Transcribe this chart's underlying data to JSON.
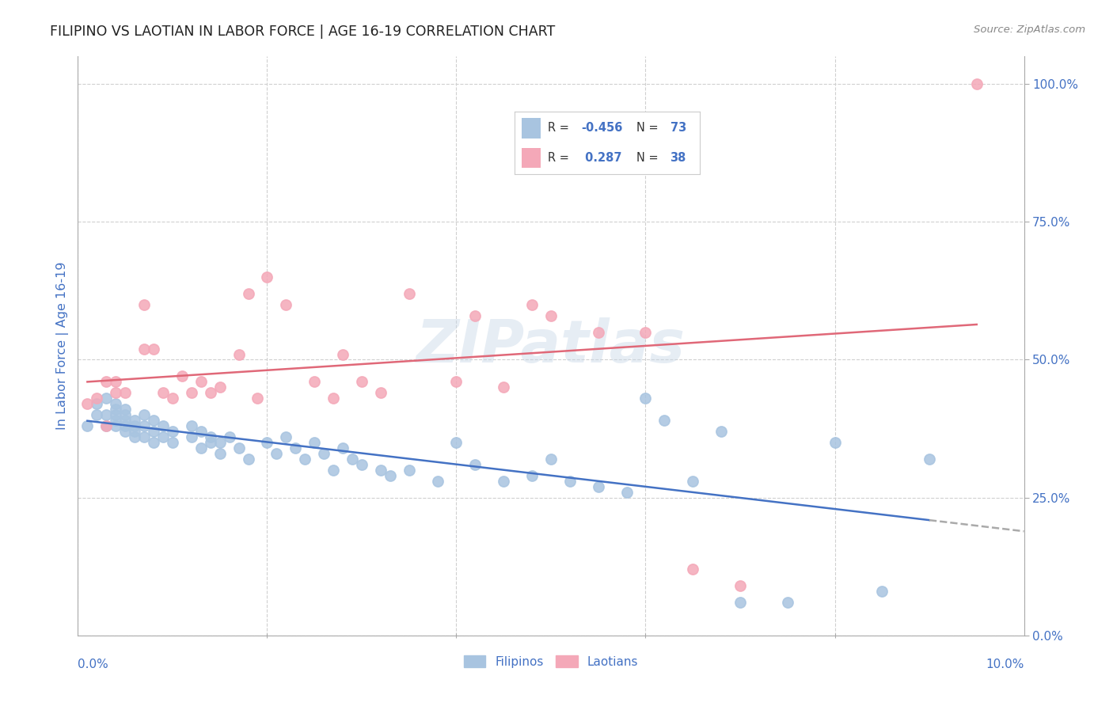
{
  "title": "FILIPINO VS LAOTIAN IN LABOR FORCE | AGE 16-19 CORRELATION CHART",
  "source": "Source: ZipAtlas.com",
  "ylabel": "In Labor Force | Age 16-19",
  "xlim": [
    0.0,
    0.1
  ],
  "ylim": [
    0.0,
    1.05
  ],
  "yticks": [
    0.0,
    0.25,
    0.5,
    0.75,
    1.0
  ],
  "ytick_labels": [
    "0.0%",
    "25.0%",
    "50.0%",
    "75.0%",
    "100.0%"
  ],
  "xtick_labels_show": [
    "0.0%",
    "10.0%"
  ],
  "xtick_show_positions": [
    0.0,
    0.1
  ],
  "filipino_color": "#a8c4e0",
  "laotian_color": "#f4a8b8",
  "filipino_R": -0.456,
  "filipino_N": 73,
  "laotian_R": 0.287,
  "laotian_N": 38,
  "watermark": "ZIPatlas",
  "filipino_line_color": "#4472c4",
  "laotian_line_color": "#e06878",
  "dashed_extension_color": "#aaaaaa",
  "background_color": "#ffffff",
  "grid_color": "#d0d0d0",
  "title_color": "#333333",
  "axis_label_color": "#4472c4",
  "legend_R_color": "#4472c4",
  "filipino_x": [
    0.001,
    0.002,
    0.002,
    0.003,
    0.003,
    0.003,
    0.004,
    0.004,
    0.004,
    0.004,
    0.004,
    0.005,
    0.005,
    0.005,
    0.005,
    0.005,
    0.006,
    0.006,
    0.006,
    0.006,
    0.007,
    0.007,
    0.007,
    0.008,
    0.008,
    0.008,
    0.009,
    0.009,
    0.01,
    0.01,
    0.012,
    0.012,
    0.013,
    0.013,
    0.014,
    0.014,
    0.015,
    0.015,
    0.016,
    0.017,
    0.018,
    0.02,
    0.021,
    0.022,
    0.023,
    0.024,
    0.025,
    0.026,
    0.027,
    0.028,
    0.029,
    0.03,
    0.032,
    0.033,
    0.035,
    0.038,
    0.04,
    0.042,
    0.045,
    0.048,
    0.05,
    0.052,
    0.055,
    0.058,
    0.06,
    0.062,
    0.065,
    0.068,
    0.07,
    0.075,
    0.08,
    0.085,
    0.09
  ],
  "filipino_y": [
    0.38,
    0.42,
    0.4,
    0.38,
    0.4,
    0.43,
    0.39,
    0.41,
    0.38,
    0.42,
    0.4,
    0.37,
    0.39,
    0.41,
    0.38,
    0.4,
    0.37,
    0.38,
    0.36,
    0.39,
    0.38,
    0.36,
    0.4,
    0.35,
    0.37,
    0.39,
    0.36,
    0.38,
    0.37,
    0.35,
    0.36,
    0.38,
    0.34,
    0.37,
    0.35,
    0.36,
    0.33,
    0.35,
    0.36,
    0.34,
    0.32,
    0.35,
    0.33,
    0.36,
    0.34,
    0.32,
    0.35,
    0.33,
    0.3,
    0.34,
    0.32,
    0.31,
    0.3,
    0.29,
    0.3,
    0.28,
    0.35,
    0.31,
    0.28,
    0.29,
    0.32,
    0.28,
    0.27,
    0.26,
    0.43,
    0.39,
    0.28,
    0.37,
    0.06,
    0.06,
    0.35,
    0.08,
    0.32
  ],
  "laotian_x": [
    0.001,
    0.002,
    0.003,
    0.003,
    0.004,
    0.004,
    0.005,
    0.007,
    0.007,
    0.008,
    0.009,
    0.01,
    0.011,
    0.012,
    0.013,
    0.014,
    0.015,
    0.017,
    0.018,
    0.019,
    0.02,
    0.022,
    0.025,
    0.027,
    0.028,
    0.03,
    0.032,
    0.035,
    0.04,
    0.042,
    0.045,
    0.048,
    0.05,
    0.055,
    0.06,
    0.065,
    0.07,
    0.095
  ],
  "laotian_y": [
    0.42,
    0.43,
    0.38,
    0.46,
    0.44,
    0.46,
    0.44,
    0.6,
    0.52,
    0.52,
    0.44,
    0.43,
    0.47,
    0.44,
    0.46,
    0.44,
    0.45,
    0.51,
    0.62,
    0.43,
    0.65,
    0.6,
    0.46,
    0.43,
    0.51,
    0.46,
    0.44,
    0.62,
    0.46,
    0.58,
    0.45,
    0.6,
    0.58,
    0.55,
    0.55,
    0.12,
    0.09,
    1.0
  ]
}
